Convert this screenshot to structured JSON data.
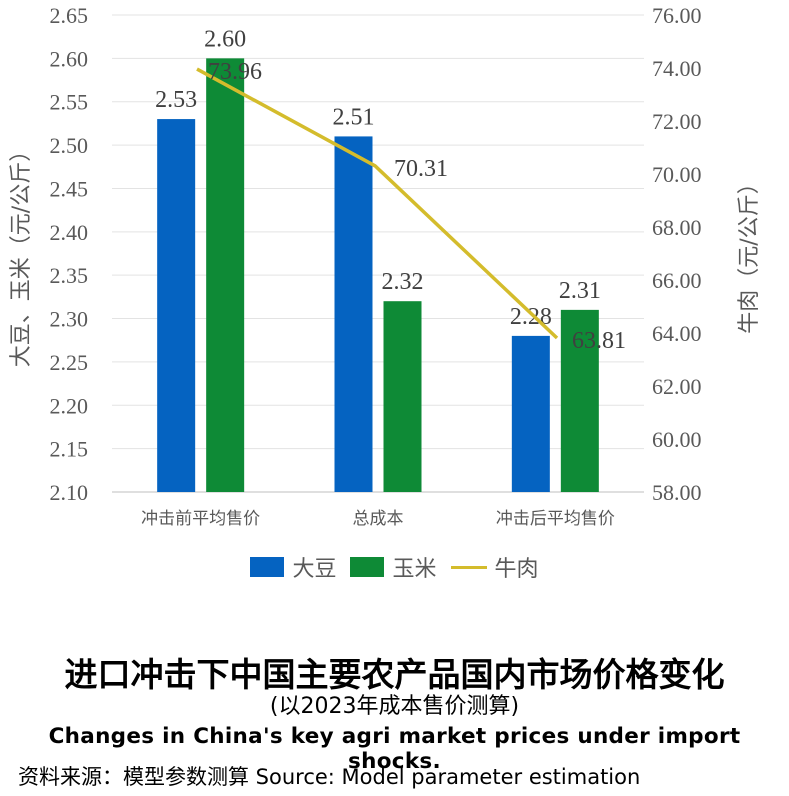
{
  "chart_data": {
    "type": "bar",
    "categories": [
      "冲击前平均售价",
      "总成本",
      "冲击后平均售价"
    ],
    "series": [
      {
        "name": "大豆",
        "values": [
          2.53,
          2.51,
          2.28
        ],
        "labels": [
          "2.53",
          "2.51",
          "2.28"
        ],
        "color": "#0563C1",
        "axis": "left",
        "kind": "bar"
      },
      {
        "name": "玉米",
        "values": [
          2.6,
          2.32,
          2.31
        ],
        "labels": [
          "2.60",
          "2.32",
          "2.31"
        ],
        "color": "#0E8A36",
        "axis": "left",
        "kind": "bar"
      },
      {
        "name": "牛肉",
        "values": [
          73.96,
          70.31,
          63.81
        ],
        "labels": [
          "73.96",
          "70.31",
          "63.81"
        ],
        "color": "#D4BC2C",
        "axis": "right",
        "kind": "line"
      }
    ],
    "ylabel": "大豆、玉米（元/公斤）",
    "y2label": "牛肉（元/公斤）",
    "ylim": [
      2.1,
      2.65
    ],
    "y2lim": [
      58.0,
      76.0
    ],
    "yticks": [
      "2.10",
      "2.15",
      "2.20",
      "2.25",
      "2.30",
      "2.35",
      "2.40",
      "2.45",
      "2.50",
      "2.55",
      "2.60",
      "2.65"
    ],
    "y2ticks": [
      "58.00",
      "60.00",
      "62.00",
      "64.00",
      "66.00",
      "68.00",
      "70.00",
      "72.00",
      "74.00",
      "76.00"
    ],
    "grid": true,
    "legend": "bottom"
  },
  "title": "进口冲击下中国主要农产品国内市场价格变化",
  "subtitle": "(以2023年成本售价测算)",
  "title_en": "Changes in China's key agri market prices under import shocks.",
  "source": "资料来源：模型参数测算  Source: Model parameter estimation"
}
